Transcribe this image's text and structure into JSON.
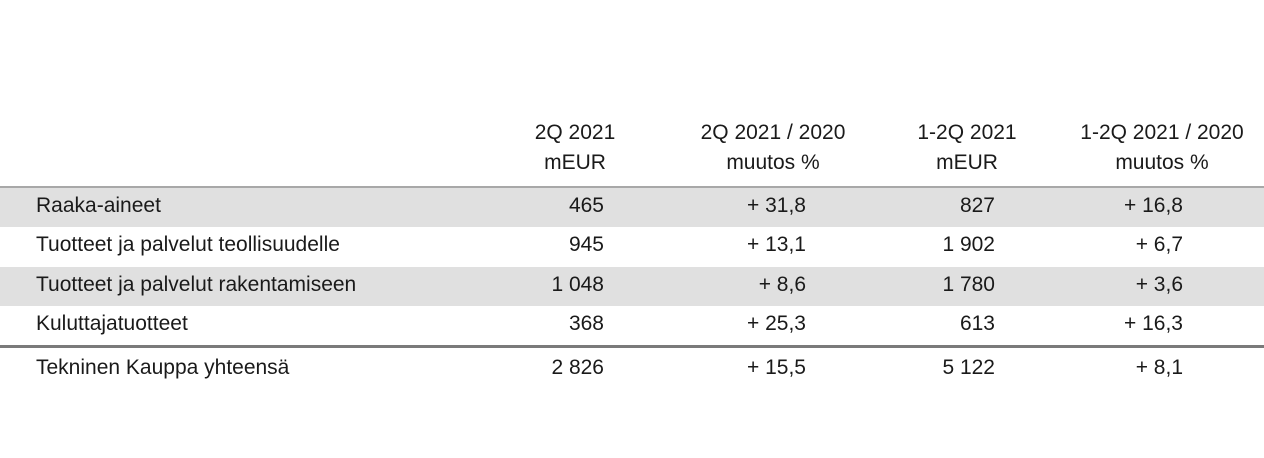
{
  "table": {
    "header": [
      [
        "2Q 2021",
        "mEUR"
      ],
      [
        "2Q 2021 / 2020",
        "muutos %"
      ],
      [
        "1-2Q 2021",
        "mEUR"
      ],
      [
        "1-2Q 2021 / 2020",
        "muutos %"
      ]
    ],
    "rows": [
      [
        "Raaka-aineet",
        "465",
        "+ 31,8",
        "827",
        "+ 16,8"
      ],
      [
        "Tuotteet ja palvelut teollisuudelle",
        "945",
        "+ 13,1",
        "1 902",
        "+ 6,7"
      ],
      [
        "Tuotteet ja palvelut rakentamiseen",
        "1 048",
        "+ 8,6",
        "1 780",
        "+ 3,6"
      ],
      [
        "Kuluttajatuotteet",
        "368",
        "+ 25,3",
        "613",
        "+ 16,3"
      ]
    ],
    "total": [
      "Tekninen Kauppa yhteensä",
      "2 826",
      "+ 15,5",
      "5 122",
      "+ 8,1"
    ]
  }
}
